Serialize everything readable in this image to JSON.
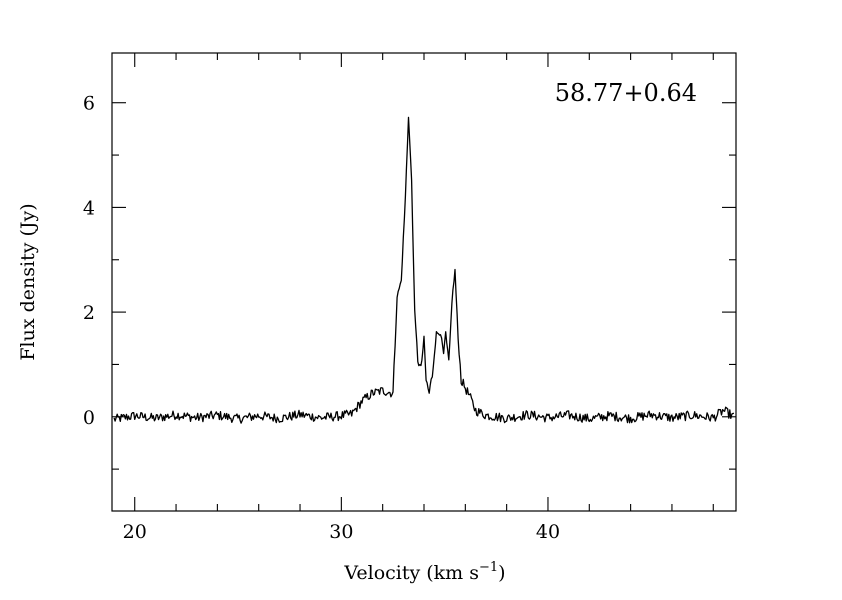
{
  "chart_data": {
    "type": "line",
    "annotation": "58.77+0.64",
    "xlabel": "Velocity (km s",
    "xlabel_superscript": "−1",
    "xlabel_suffix": ")",
    "ylabel": "Flux density (Jy)",
    "xlim": [
      18.9,
      49.1
    ],
    "ylim": [
      -1.8,
      6.95
    ],
    "x_major_ticks": [
      20,
      30,
      40
    ],
    "x_minor_ticks": [
      22,
      24,
      26,
      28,
      32,
      34,
      36,
      38,
      42,
      44,
      46,
      48
    ],
    "x_tick_labels": [
      "20",
      "30",
      "40"
    ],
    "y_major_ticks": [
      0,
      2,
      4,
      6
    ],
    "y_minor_ticks": [
      -1,
      1,
      3,
      5
    ],
    "y_tick_labels": [
      "0",
      "2",
      "4",
      "6"
    ],
    "grid": false,
    "line_color": "#000000",
    "series": [
      {
        "points": [
          [
            19.0,
            -0.05
          ],
          [
            20.0,
            0.02
          ],
          [
            21.0,
            -0.03
          ],
          [
            22.0,
            0.04
          ],
          [
            23.0,
            -0.02
          ],
          [
            24.0,
            0.03
          ],
          [
            25.0,
            -0.04
          ],
          [
            26.0,
            0.02
          ],
          [
            27.0,
            -0.03
          ],
          [
            28.0,
            0.04
          ],
          [
            29.0,
            -0.02
          ],
          [
            30.0,
            0.02
          ],
          [
            30.5,
            0.05
          ],
          [
            31.0,
            0.3
          ],
          [
            31.5,
            0.45
          ],
          [
            32.0,
            0.5
          ],
          [
            32.5,
            0.45
          ],
          [
            32.7,
            2.3
          ],
          [
            32.9,
            2.6
          ],
          [
            33.1,
            4.2
          ],
          [
            33.25,
            5.75
          ],
          [
            33.4,
            4.5
          ],
          [
            33.55,
            2.0
          ],
          [
            33.7,
            1.1
          ],
          [
            33.85,
            0.9
          ],
          [
            34.0,
            1.5
          ],
          [
            34.1,
            0.7
          ],
          [
            34.25,
            0.45
          ],
          [
            34.4,
            0.8
          ],
          [
            34.6,
            1.6
          ],
          [
            34.8,
            1.6
          ],
          [
            34.95,
            1.2
          ],
          [
            35.05,
            1.6
          ],
          [
            35.2,
            1.0
          ],
          [
            35.35,
            2.2
          ],
          [
            35.5,
            2.8
          ],
          [
            35.65,
            1.5
          ],
          [
            35.8,
            0.7
          ],
          [
            36.0,
            0.55
          ],
          [
            36.2,
            0.4
          ],
          [
            36.5,
            0.12
          ],
          [
            37.0,
            0.03
          ],
          [
            38.0,
            -0.03
          ],
          [
            39.0,
            0.04
          ],
          [
            40.0,
            -0.02
          ],
          [
            41.0,
            0.03
          ],
          [
            42.0,
            -0.04
          ],
          [
            43.0,
            0.02
          ],
          [
            44.0,
            -0.03
          ],
          [
            45.0,
            0.04
          ],
          [
            46.0,
            -0.02
          ],
          [
            47.0,
            0.03
          ],
          [
            48.0,
            -0.02
          ],
          [
            48.5,
            0.12
          ],
          [
            49.0,
            0.0
          ]
        ]
      }
    ]
  }
}
